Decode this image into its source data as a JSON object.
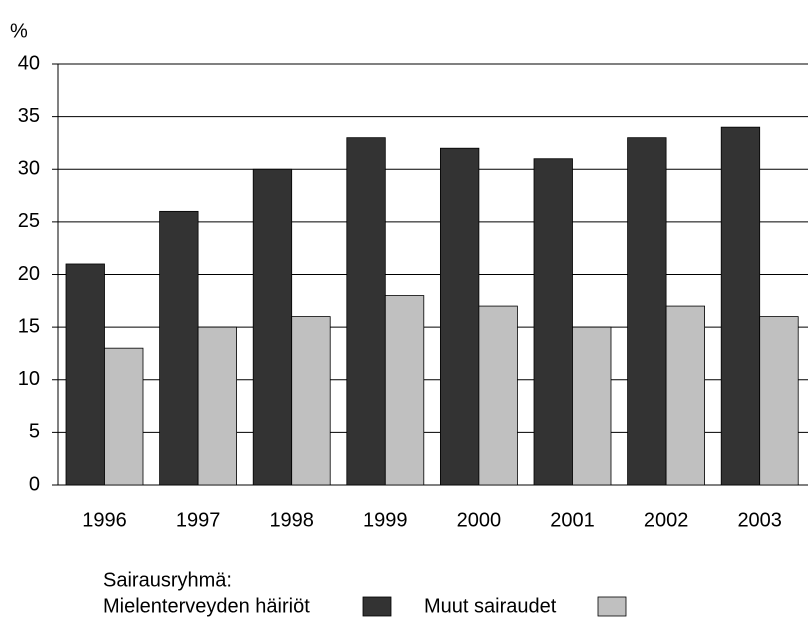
{
  "chart_data": {
    "type": "bar",
    "y_label": "%",
    "legend_title": "Sairausryhmä:",
    "categories": [
      "1996",
      "1997",
      "1998",
      "1999",
      "2000",
      "2001",
      "2002",
      "2003"
    ],
    "series": [
      {
        "name": "Mielenterveyden häiriöt",
        "color": "#333333",
        "values": [
          21,
          26,
          30,
          33,
          32,
          31,
          33,
          34
        ]
      },
      {
        "name": "Muut sairaudet",
        "color": "#c0c0c0",
        "values": [
          13,
          15,
          16,
          18,
          17,
          15,
          17,
          16
        ]
      }
    ],
    "ylim": [
      0,
      40
    ],
    "yticks": [
      0,
      5,
      10,
      15,
      20,
      25,
      30,
      35,
      40
    ],
    "grid": true
  }
}
